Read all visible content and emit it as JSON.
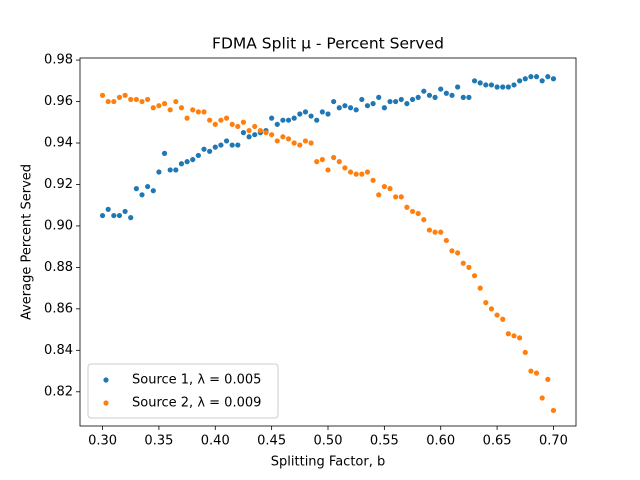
{
  "chart_data": {
    "type": "scatter",
    "title": "FDMA Split μ - Percent Served",
    "x_label": "Splitting Factor, b",
    "y_label": "Average Percent Served",
    "x": [
      0.3,
      0.305,
      0.31,
      0.315,
      0.32,
      0.325,
      0.33,
      0.335,
      0.34,
      0.345,
      0.35,
      0.355,
      0.36,
      0.365,
      0.37,
      0.375,
      0.38,
      0.385,
      0.39,
      0.395,
      0.4,
      0.405,
      0.41,
      0.415,
      0.42,
      0.425,
      0.43,
      0.435,
      0.44,
      0.445,
      0.45,
      0.455,
      0.46,
      0.465,
      0.47,
      0.475,
      0.48,
      0.485,
      0.49,
      0.495,
      0.5,
      0.505,
      0.51,
      0.515,
      0.52,
      0.525,
      0.53,
      0.535,
      0.54,
      0.545,
      0.55,
      0.555,
      0.56,
      0.565,
      0.57,
      0.575,
      0.58,
      0.585,
      0.59,
      0.595,
      0.6,
      0.605,
      0.61,
      0.615,
      0.62,
      0.625,
      0.63,
      0.635,
      0.64,
      0.645,
      0.65,
      0.655,
      0.66,
      0.665,
      0.67,
      0.675,
      0.68,
      0.685,
      0.69,
      0.695,
      0.7
    ],
    "series": [
      {
        "name": "Source 1, λ = 0.005",
        "color": "#1f77b4",
        "values": [
          0.905,
          0.908,
          0.905,
          0.905,
          0.907,
          0.904,
          0.918,
          0.915,
          0.919,
          0.917,
          0.926,
          0.935,
          0.927,
          0.927,
          0.93,
          0.931,
          0.932,
          0.934,
          0.937,
          0.936,
          0.938,
          0.939,
          0.941,
          0.939,
          0.939,
          0.945,
          0.943,
          0.944,
          0.945,
          0.946,
          0.952,
          0.949,
          0.951,
          0.951,
          0.952,
          0.954,
          0.955,
          0.953,
          0.951,
          0.955,
          0.954,
          0.96,
          0.957,
          0.958,
          0.957,
          0.956,
          0.961,
          0.958,
          0.959,
          0.962,
          0.957,
          0.96,
          0.96,
          0.961,
          0.959,
          0.961,
          0.962,
          0.965,
          0.963,
          0.962,
          0.966,
          0.964,
          0.963,
          0.967,
          0.962,
          0.962,
          0.97,
          0.969,
          0.968,
          0.968,
          0.967,
          0.967,
          0.967,
          0.968,
          0.97,
          0.971,
          0.972,
          0.972,
          0.97,
          0.972,
          0.971
        ]
      },
      {
        "name": "Source 2, λ = 0.009",
        "color": "#ff7f0e",
        "values": [
          0.963,
          0.96,
          0.96,
          0.962,
          0.963,
          0.961,
          0.961,
          0.96,
          0.961,
          0.957,
          0.958,
          0.959,
          0.956,
          0.96,
          0.957,
          0.952,
          0.956,
          0.955,
          0.955,
          0.951,
          0.949,
          0.951,
          0.952,
          0.949,
          0.948,
          0.95,
          0.946,
          0.948,
          0.946,
          0.945,
          0.944,
          0.941,
          0.943,
          0.942,
          0.94,
          0.939,
          0.941,
          0.94,
          0.931,
          0.932,
          0.927,
          0.933,
          0.931,
          0.928,
          0.926,
          0.925,
          0.925,
          0.926,
          0.922,
          0.915,
          0.919,
          0.918,
          0.914,
          0.914,
          0.909,
          0.907,
          0.906,
          0.903,
          0.898,
          0.897,
          0.897,
          0.893,
          0.888,
          0.887,
          0.882,
          0.88,
          0.876,
          0.87,
          0.863,
          0.86,
          0.857,
          0.855,
          0.848,
          0.847,
          0.846,
          0.839,
          0.83,
          0.829,
          0.817,
          0.826,
          0.811
        ]
      }
    ],
    "xlim": [
      0.28,
      0.72
    ],
    "ylim": [
      0.8035,
      0.981
    ],
    "xticks": [
      {
        "value": 0.3,
        "label": "0.30"
      },
      0.35,
      {
        "value": 0.4,
        "label": "0.40"
      },
      0.45,
      {
        "value": 0.5,
        "label": "0.50"
      },
      0.55,
      {
        "value": 0.6,
        "label": "0.60"
      },
      0.65,
      {
        "value": 0.7,
        "label": "0.70"
      }
    ],
    "yticks": [
      0.82,
      0.84,
      0.86,
      0.88,
      {
        "value": 0.9,
        "label": "0.90"
      },
      0.92,
      0.94,
      0.96,
      0.98
    ],
    "grid": false,
    "legend": "lower left"
  }
}
